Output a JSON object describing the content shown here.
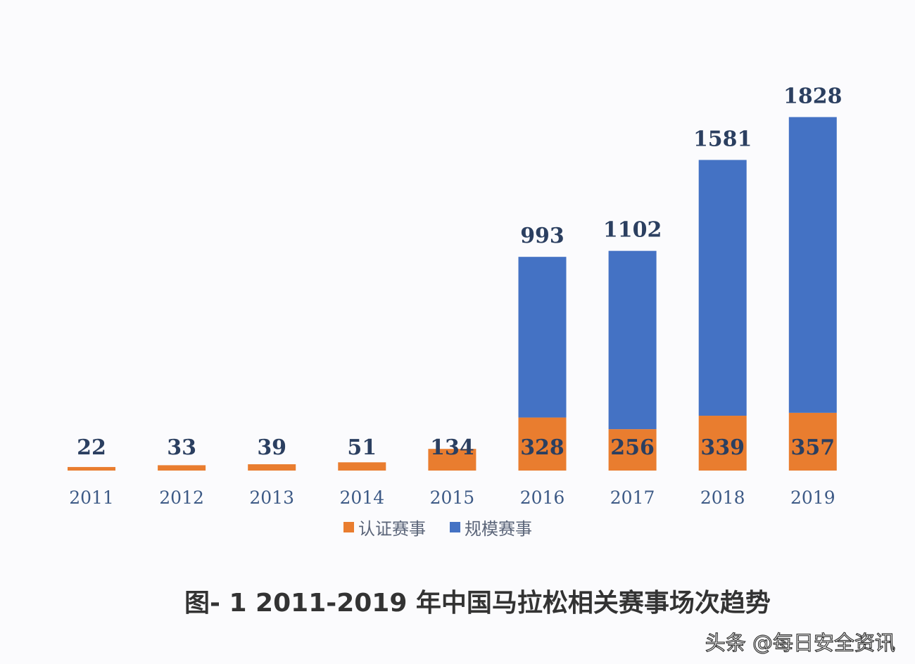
{
  "chart_data": {
    "type": "bar",
    "stacked": true,
    "title": "图- 1 2011-2019 年中国马拉松相关赛事场次趋势",
    "categories": [
      "2011",
      "2012",
      "2013",
      "2014",
      "2015",
      "2016",
      "2017",
      "2018",
      "2019"
    ],
    "series": [
      {
        "name": "认证赛事",
        "color": "#e97d2f",
        "values": [
          22,
          33,
          39,
          51,
          134,
          328,
          256,
          339,
          357
        ]
      },
      {
        "name": "规模赛事",
        "color": "#4472c4",
        "values": [
          null,
          null,
          null,
          null,
          null,
          993,
          1102,
          1581,
          1828
        ]
      }
    ],
    "legend_position": "bottom",
    "grid": false,
    "y_axis_visible": false,
    "xlabel": "",
    "ylabel": ""
  },
  "watermark": "头条 @每日安全资讯"
}
